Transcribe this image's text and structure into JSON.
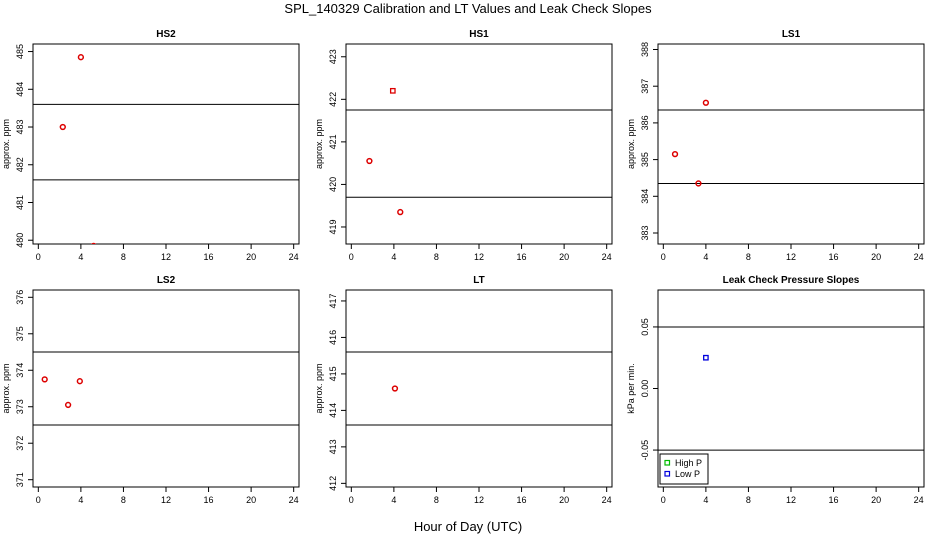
{
  "page_title": "SPL_140329  Calibration and LT Values and Leak Check Slopes",
  "x_axis_label": "Hour of Day (UTC)",
  "chart_data": [
    {
      "type": "scatter",
      "title": "HS2",
      "ylabel": "approx. ppm",
      "xlim": [
        -0.5,
        24.5
      ],
      "ylim": [
        479.9,
        485.2
      ],
      "xticks": [
        0,
        4,
        8,
        12,
        16,
        20,
        24
      ],
      "yticks": [
        480,
        481,
        482,
        483,
        484,
        485
      ],
      "hlines": [
        483.6,
        481.6
      ],
      "series": [
        {
          "color": "#dd0000",
          "marker": "circle",
          "points": [
            [
              2.3,
              483.0
            ],
            [
              4.0,
              484.85
            ],
            [
              5.2,
              479.85
            ]
          ]
        }
      ]
    },
    {
      "type": "scatter",
      "title": "HS1",
      "ylabel": "approx. ppm",
      "xlim": [
        -0.5,
        24.5
      ],
      "ylim": [
        418.6,
        423.3
      ],
      "xticks": [
        0,
        4,
        8,
        12,
        16,
        20,
        24
      ],
      "yticks": [
        419,
        420,
        421,
        422,
        423
      ],
      "hlines": [
        421.75,
        419.7
      ],
      "series": [
        {
          "color": "#dd0000",
          "marker": "circle",
          "points": [
            [
              1.7,
              420.55
            ],
            [
              4.6,
              419.35
            ]
          ]
        },
        {
          "color": "#dd0000",
          "marker": "square",
          "points": [
            [
              3.9,
              422.2
            ]
          ]
        }
      ]
    },
    {
      "type": "scatter",
      "title": "LS1",
      "ylabel": "approx. ppm",
      "xlim": [
        -0.5,
        24.5
      ],
      "ylim": [
        382.7,
        388.15
      ],
      "xticks": [
        0,
        4,
        8,
        12,
        16,
        20,
        24
      ],
      "yticks": [
        383,
        384,
        385,
        386,
        387,
        388
      ],
      "hlines": [
        386.35,
        384.35
      ],
      "series": [
        {
          "color": "#dd0000",
          "marker": "circle",
          "points": [
            [
              1.1,
              385.15
            ],
            [
              3.3,
              384.35
            ],
            [
              4.0,
              386.55
            ]
          ]
        }
      ]
    },
    {
      "type": "scatter",
      "title": "LS2",
      "ylabel": "approx. ppm",
      "xlim": [
        -0.5,
        24.5
      ],
      "ylim": [
        370.8,
        376.2
      ],
      "xticks": [
        0,
        4,
        8,
        12,
        16,
        20,
        24
      ],
      "yticks": [
        371,
        372,
        373,
        374,
        375,
        376
      ],
      "hlines": [
        374.5,
        372.5
      ],
      "series": [
        {
          "color": "#dd0000",
          "marker": "circle",
          "points": [
            [
              0.6,
              373.75
            ],
            [
              2.8,
              373.05
            ],
            [
              3.9,
              373.7
            ]
          ]
        }
      ]
    },
    {
      "type": "scatter",
      "title": "LT",
      "ylabel": "approx. ppm",
      "xlim": [
        -0.5,
        24.5
      ],
      "ylim": [
        411.9,
        417.3
      ],
      "xticks": [
        0,
        4,
        8,
        12,
        16,
        20,
        24
      ],
      "yticks": [
        412,
        413,
        414,
        415,
        416,
        417
      ],
      "hlines": [
        415.6,
        413.6
      ],
      "series": [
        {
          "color": "#dd0000",
          "marker": "circle",
          "points": [
            [
              4.1,
              414.6
            ]
          ]
        }
      ]
    },
    {
      "type": "scatter",
      "title": "Leak Check Pressure Slopes",
      "ylabel": "kPa per min.",
      "xlim": [
        -0.5,
        24.5
      ],
      "ylim": [
        -0.08,
        0.08
      ],
      "xticks": [
        0,
        4,
        8,
        12,
        16,
        20,
        24
      ],
      "yticks": [
        -0.05,
        0.0,
        0.05
      ],
      "ytick_labels": [
        "-0.05",
        "0.00",
        "0.05"
      ],
      "hlines": [
        0.05,
        -0.05
      ],
      "legend": {
        "position": "bottom-left",
        "entries": [
          {
            "label": "High P",
            "color": "#00bb00",
            "marker": "square"
          },
          {
            "label": "Low P",
            "color": "#0000dd",
            "marker": "square"
          }
        ]
      },
      "series": [
        {
          "name": "Low P",
          "color": "#0000dd",
          "marker": "square",
          "points": [
            [
              4.0,
              0.025
            ]
          ]
        }
      ]
    }
  ]
}
